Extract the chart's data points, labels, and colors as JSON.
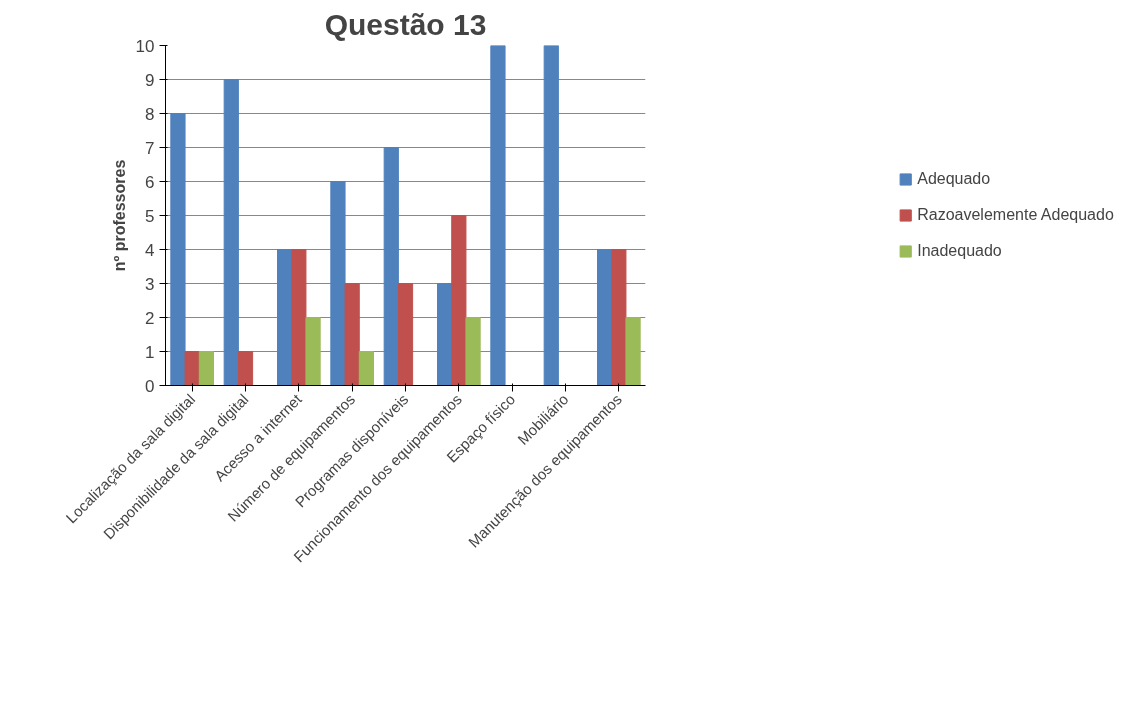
{
  "chart_data": {
    "type": "bar",
    "title": "Questão 13",
    "ylabel": "nº professores",
    "categories": [
      "Localização da sala digital",
      "Disponibilidade da sala digital",
      "Acesso a internet",
      "Número de equipamentos",
      "Programas disponíveis",
      "Funcionamento dos equipamentos",
      "Espaço físico",
      "Mobiliário",
      "Manutenção dos equipamentos"
    ],
    "series": [
      {
        "name": "Adequado",
        "color": "#4f81bd",
        "values": [
          8,
          9,
          4,
          6,
          7,
          3,
          10,
          10,
          4
        ]
      },
      {
        "name": "Razoavelemente Adequado",
        "color": "#c0504d",
        "values": [
          1,
          1,
          4,
          3,
          3,
          5,
          0,
          0,
          4
        ]
      },
      {
        "name": "Inadequado",
        "color": "#9bbb59",
        "values": [
          1,
          0,
          2,
          1,
          0,
          2,
          0,
          0,
          2
        ]
      }
    ],
    "ylim": [
      0,
      10
    ],
    "yticks": [
      0,
      1,
      2,
      3,
      4,
      5,
      6,
      7,
      8,
      9,
      10
    ],
    "grid": "y",
    "legend": "right"
  }
}
